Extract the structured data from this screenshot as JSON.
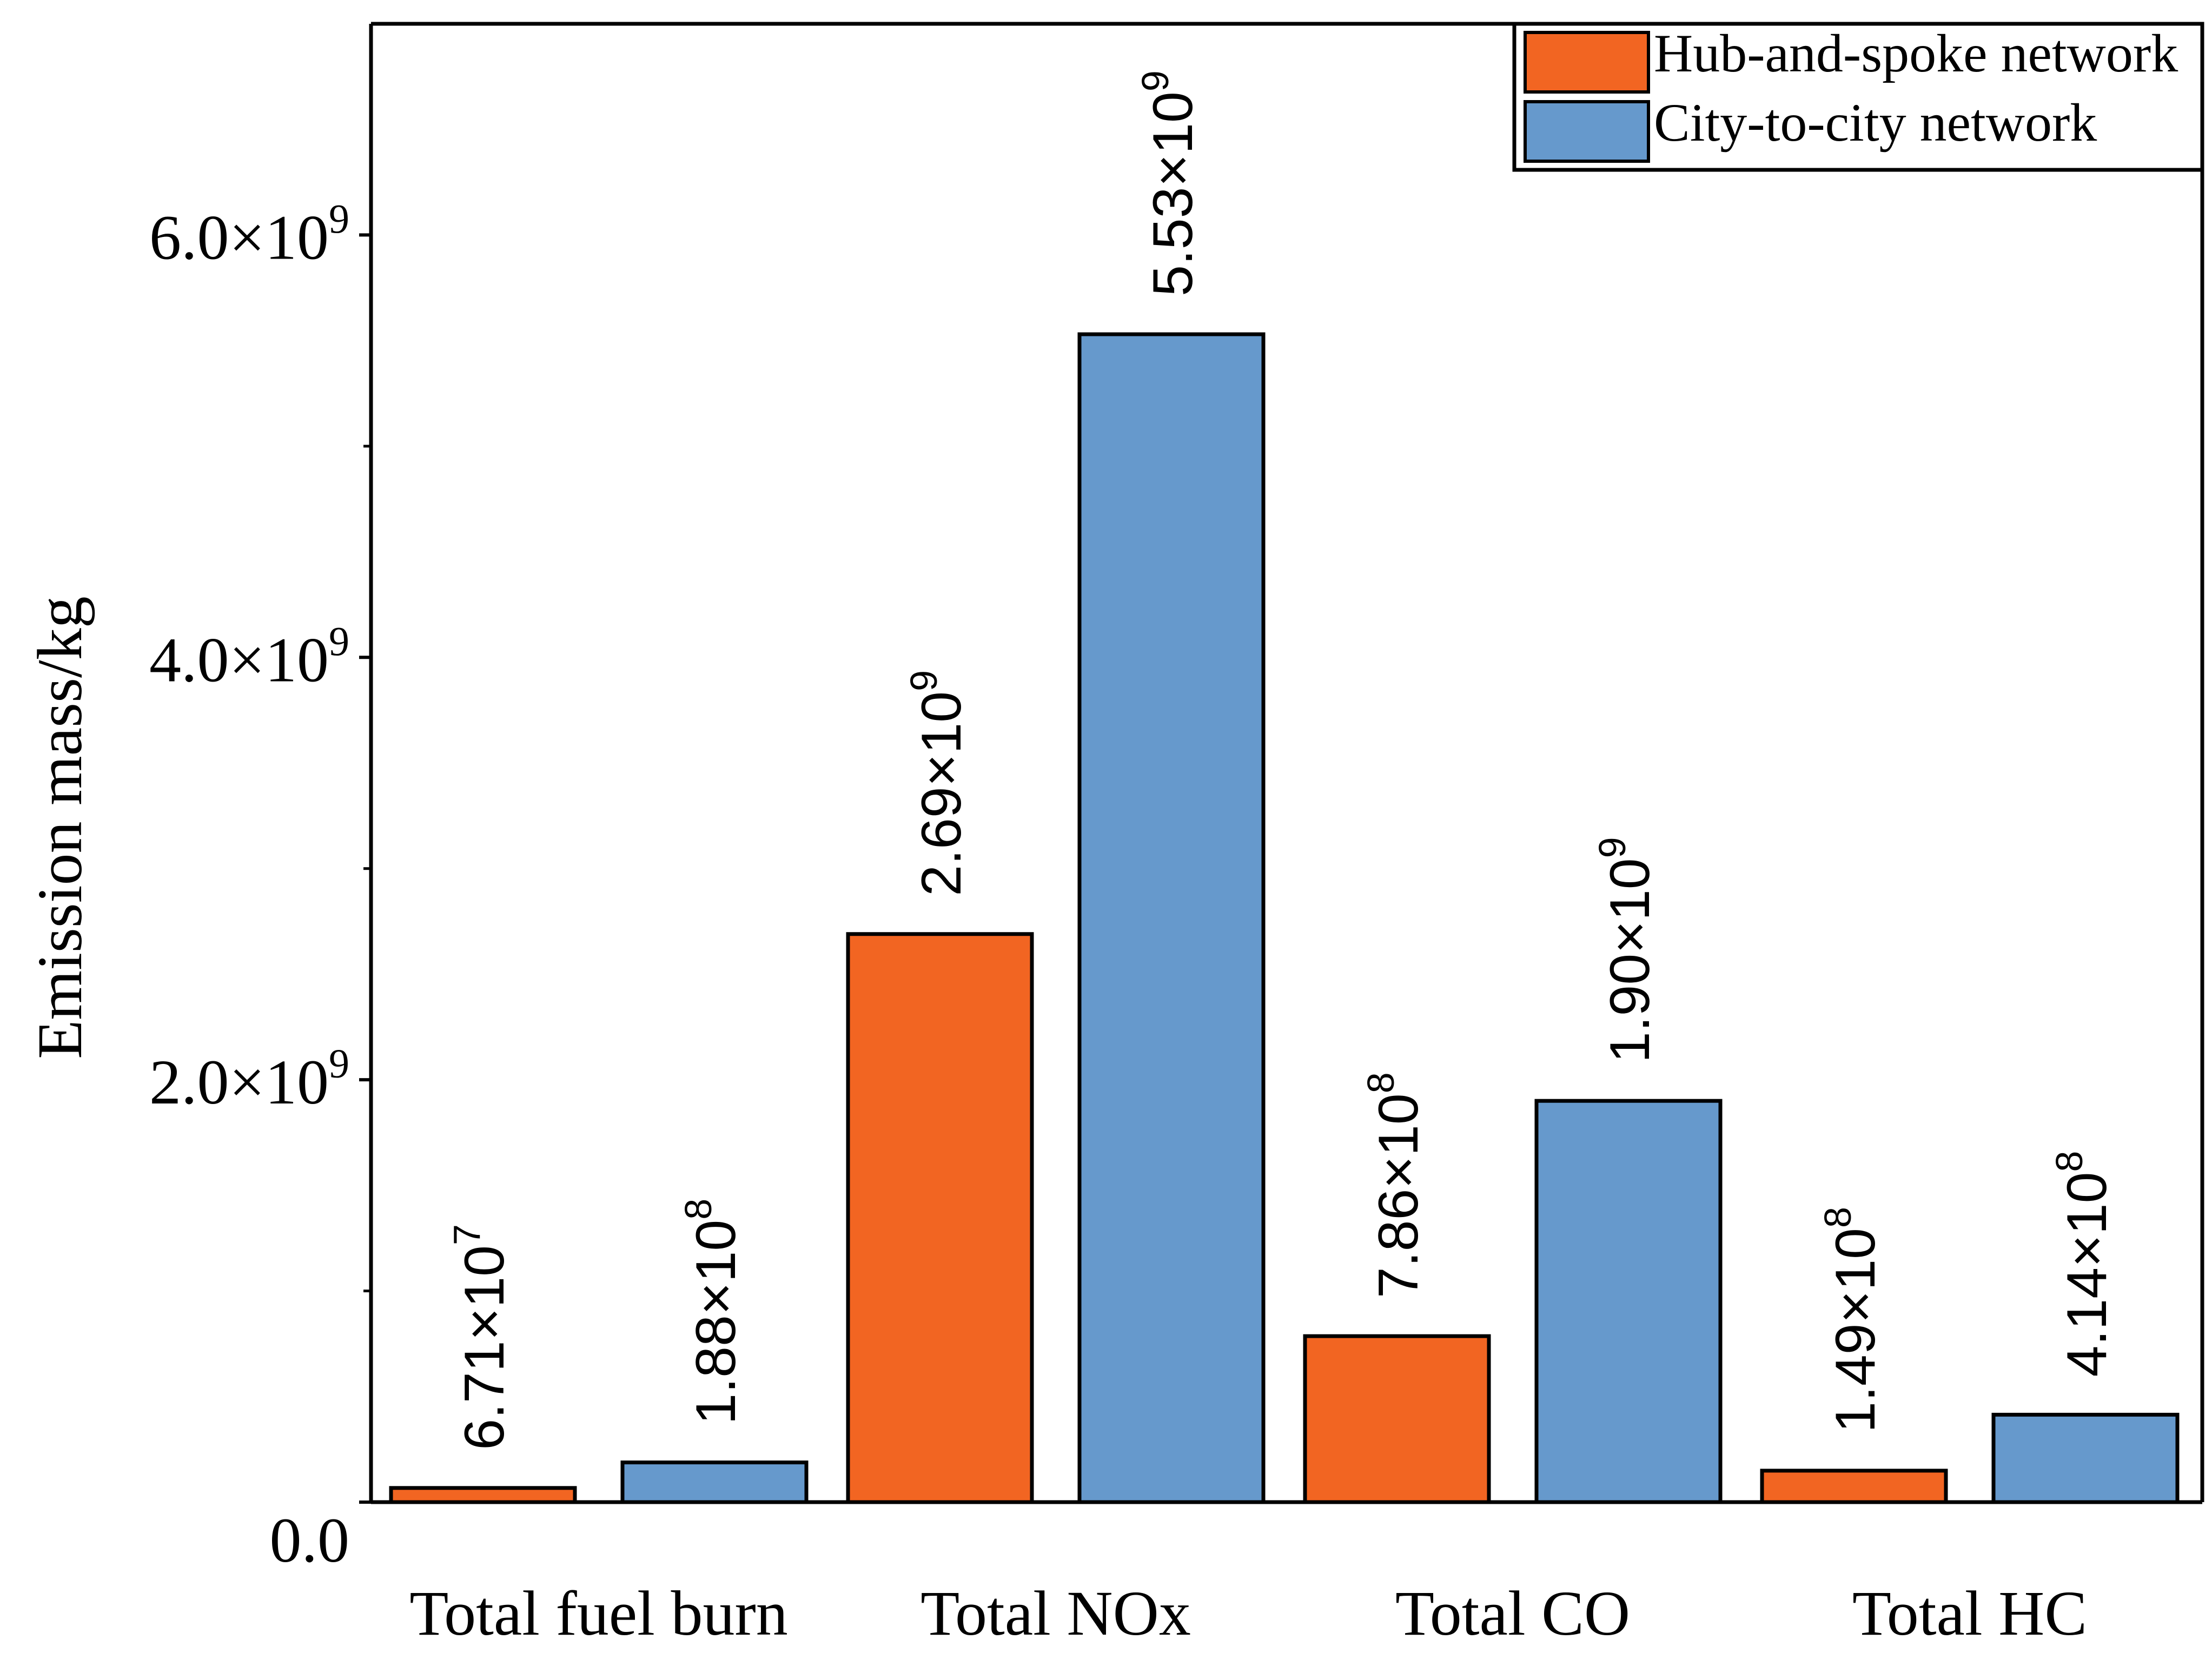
{
  "chart_data": {
    "type": "bar",
    "title": "",
    "xlabel": "",
    "ylabel": "Emission mass/kg",
    "ylim": [
      0,
      7000000000
    ],
    "grid": false,
    "legend_position": "top-right",
    "categories": [
      "Total fuel burn",
      "Total NOx",
      "Total CO",
      "Total HC"
    ],
    "series": [
      {
        "name": "Hub-and-spoke network",
        "color": "#f26522",
        "values": [
          67100000,
          2690000000,
          786000000,
          149000000
        ],
        "labels": [
          {
            "mantissa": "6.71×10",
            "exp": "7"
          },
          {
            "mantissa": "2.69×10",
            "exp": "9"
          },
          {
            "mantissa": "7.86×10",
            "exp": "8"
          },
          {
            "mantissa": "1.49×10",
            "exp": "8"
          }
        ]
      },
      {
        "name": "City-to-city network",
        "color": "#6699cc",
        "values": [
          188000000,
          5530000000,
          1900000000,
          414000000
        ],
        "labels": [
          {
            "mantissa": "1.88×10",
            "exp": "8"
          },
          {
            "mantissa": "5.53×10",
            "exp": "9"
          },
          {
            "mantissa": "1.90×10",
            "exp": "9"
          },
          {
            "mantissa": "4.14×10",
            "exp": "8"
          }
        ]
      }
    ],
    "y_ticks": [
      {
        "value": 0,
        "mantissa": "0.0",
        "exp": ""
      },
      {
        "value": 2000000000,
        "mantissa": "2.0×10",
        "exp": "9"
      },
      {
        "value": 4000000000,
        "mantissa": "4.0×10",
        "exp": "9"
      },
      {
        "value": 6000000000,
        "mantissa": "6.0×10",
        "exp": "9"
      }
    ],
    "y_minor_ticks": [
      1000000000,
      3000000000,
      5000000000
    ]
  }
}
